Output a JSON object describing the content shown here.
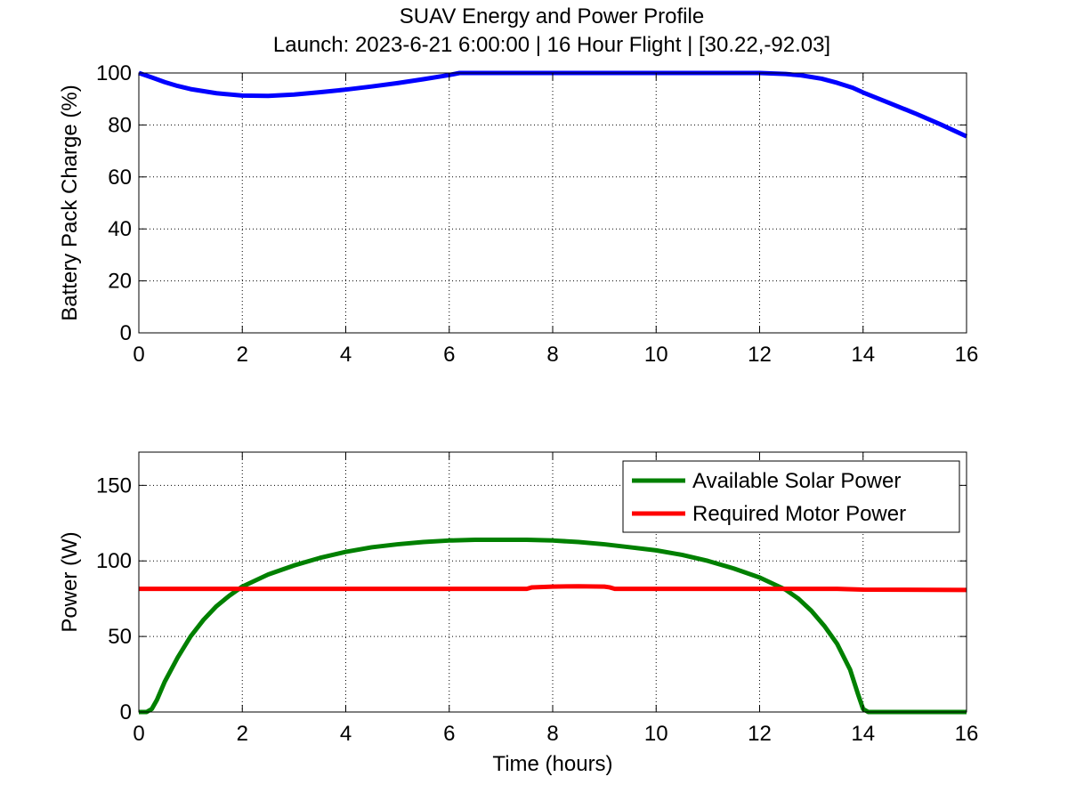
{
  "figure": {
    "title": "SUAV Energy and Power Profile",
    "subtitle": "Launch: 2023-6-21 6:00:00 | 16 Hour Flight | [30.22,-92.03]"
  },
  "chart_data": [
    {
      "type": "line",
      "xlabel": "",
      "ylabel": "Battery Pack Charge (%)",
      "xlim": [
        0,
        16
      ],
      "ylim": [
        0,
        100
      ],
      "xticks": [
        0,
        2,
        4,
        6,
        8,
        10,
        12,
        14,
        16
      ],
      "yticks": [
        0,
        20,
        40,
        60,
        80,
        100
      ],
      "xtick_labels": [
        "0",
        "2",
        "4",
        "6",
        "8",
        "10",
        "12",
        "14",
        "16"
      ],
      "ytick_labels": [
        "0",
        "20",
        "40",
        "60",
        "80",
        "100"
      ],
      "grid": true,
      "series": [
        {
          "color": "#0000ff",
          "x": [
            0,
            0.25,
            0.5,
            0.75,
            1.0,
            1.5,
            2.0,
            2.5,
            3.0,
            3.5,
            4.0,
            4.5,
            5.0,
            5.5,
            6.0,
            6.2,
            6.5,
            7,
            8,
            9,
            10,
            11,
            12,
            12.5,
            12.8,
            13.2,
            13.5,
            13.8,
            14.0,
            14.5,
            15.0,
            15.5,
            16.0
          ],
          "y": [
            100,
            98.3,
            96.5,
            95.0,
            93.8,
            92.2,
            91.3,
            91.2,
            91.7,
            92.6,
            93.6,
            94.8,
            96.1,
            97.6,
            99.2,
            100,
            100,
            100,
            100,
            100,
            100,
            100,
            100,
            99.6,
            99.1,
            97.8,
            96.2,
            94.3,
            92.5,
            88.5,
            84.5,
            80.2,
            75.6
          ]
        }
      ]
    },
    {
      "type": "line",
      "xlabel": "Time (hours)",
      "ylabel": "Power (W)",
      "xlim": [
        0,
        16
      ],
      "ylim": [
        0,
        172
      ],
      "xticks": [
        0,
        2,
        4,
        6,
        8,
        10,
        12,
        14,
        16
      ],
      "yticks": [
        0,
        50,
        100,
        150
      ],
      "xtick_labels": [
        "0",
        "2",
        "4",
        "6",
        "8",
        "10",
        "12",
        "14",
        "16"
      ],
      "ytick_labels": [
        "0",
        "50",
        "100",
        "150"
      ],
      "grid": true,
      "legend_position": "top-right",
      "series": [
        {
          "name": "Available Solar Power",
          "color": "#008000",
          "x": [
            0,
            0.15,
            0.25,
            0.35,
            0.5,
            0.75,
            1.0,
            1.25,
            1.5,
            1.75,
            2.0,
            2.5,
            3.0,
            3.5,
            4.0,
            4.5,
            5.0,
            5.5,
            6.0,
            6.5,
            7.0,
            7.5,
            8.0,
            8.5,
            9.0,
            9.5,
            10.0,
            10.5,
            11.0,
            11.5,
            12.0,
            12.5,
            12.75,
            13.0,
            13.25,
            13.5,
            13.75,
            13.9,
            14.0,
            14.1,
            15.0,
            16.0
          ],
          "y": [
            0,
            0,
            2,
            8,
            20,
            36,
            50,
            61,
            70,
            77,
            83,
            91,
            97,
            102,
            106,
            109,
            111,
            112.5,
            113.5,
            114,
            114,
            114,
            113.5,
            112.5,
            111,
            109,
            107,
            104,
            100,
            95,
            89,
            81,
            75,
            67,
            57,
            45,
            28,
            12,
            2,
            0,
            0,
            0
          ]
        },
        {
          "name": "Required Motor Power",
          "color": "#ff0000",
          "x": [
            0,
            2,
            4,
            6,
            7.5,
            7.6,
            8.0,
            8.5,
            9.0,
            9.1,
            9.2,
            10,
            12,
            13.5,
            14,
            16
          ],
          "y": [
            81.5,
            81.5,
            81.5,
            81.5,
            81.5,
            82.5,
            83,
            83.2,
            83,
            82.5,
            81.5,
            81.5,
            81.5,
            81.5,
            81,
            80.8
          ]
        }
      ]
    }
  ]
}
